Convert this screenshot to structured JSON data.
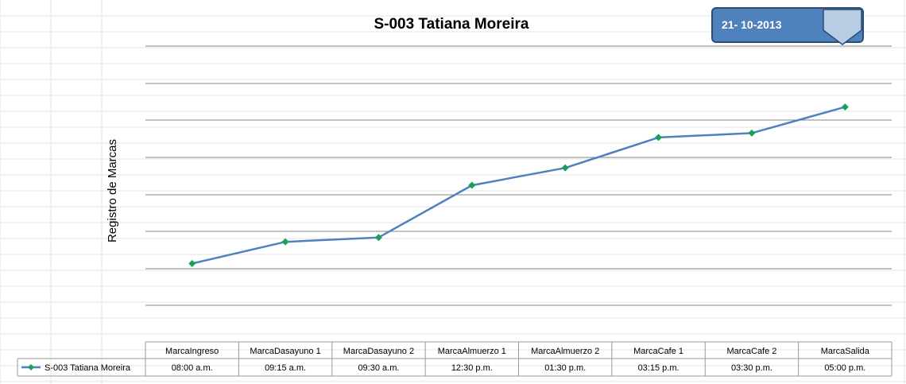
{
  "chart_data": {
    "type": "line",
    "title": "S-003 Tatiana Moreira",
    "ylabel": "Registro de Marcas",
    "xlabel": "",
    "categories": [
      "MarcaIngreso",
      "MarcaDasayuno 1",
      "MarcaDasayuno 2",
      "MarcaAlmuerzo 1",
      "MarcaAlmuerzo 2",
      "MarcaCafe 1",
      "MarcaCafe 2",
      "MarcaSalida"
    ],
    "series": [
      {
        "name": "S-003 Tatiana  Moreira",
        "values": [
          8.0,
          9.25,
          9.5,
          12.5,
          13.5,
          15.25,
          15.5,
          17.0
        ],
        "labels": [
          "08:00 a.m.",
          "09:15 a.m.",
          "09:30 a.m.",
          "12:30 p.m.",
          "01:30 p.m.",
          "03:15 p.m.",
          "03:30 p.m.",
          "05:00 p.m."
        ],
        "color": "#4f81bd",
        "marker_color": "#1aa05a"
      }
    ],
    "ylim": [
      3.5,
      20.5
    ],
    "grid": true,
    "legend": "data-table"
  },
  "date_badge": {
    "text": "21- 10-2013",
    "fill": "#4f81bd",
    "border": "#2c4d75",
    "dropdown_fill": "#b8cce4"
  },
  "colors": {
    "gridline": "#868686",
    "table_border": "#9a9a9a",
    "sheet_grid": "#e3e3e3"
  }
}
